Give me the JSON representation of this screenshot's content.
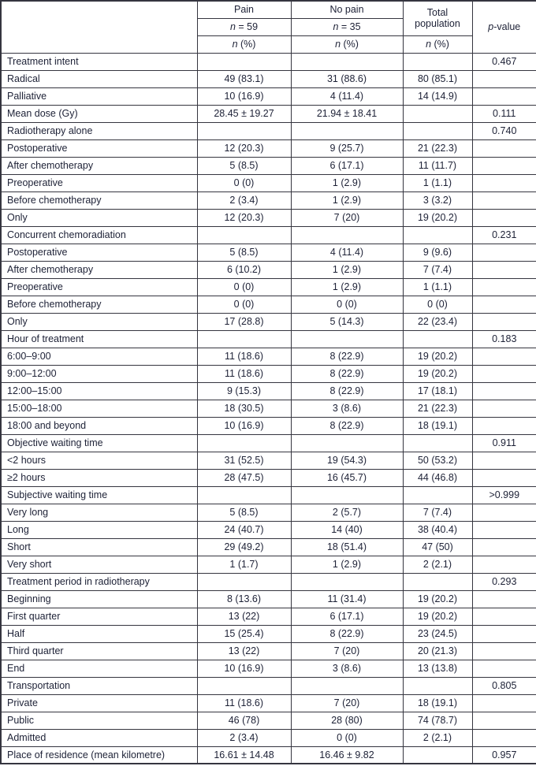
{
  "colors": {
    "text": "#1d2136",
    "border": "#35353f",
    "background": "#ffffff"
  },
  "table": {
    "header": {
      "corner": "",
      "pain": {
        "title": "Pain",
        "n": {
          "it": "n",
          "rest": " = 59"
        },
        "pct": {
          "it": "n",
          "rest": " (%)"
        }
      },
      "no_pain": {
        "title": "No pain",
        "n": {
          "it": "n",
          "rest": " = 35"
        },
        "pct": {
          "it": "n",
          "rest": " (%)"
        }
      },
      "total": {
        "title": "Total population",
        "pct": {
          "it": "n",
          "rest": " (%)"
        }
      },
      "p_value": {
        "it": "p",
        "rest": "-value"
      }
    },
    "rows": [
      {
        "label": "Treatment intent",
        "pain": "",
        "no_pain": "",
        "total": "",
        "p": "0.467"
      },
      {
        "label": "Radical",
        "pain": "49 (83.1)",
        "no_pain": "31 (88.6)",
        "total": "80 (85.1)",
        "p": ""
      },
      {
        "label": "Palliative",
        "pain": "10 (16.9)",
        "no_pain": "4 (11.4)",
        "total": "14 (14.9)",
        "p": ""
      },
      {
        "label": "Mean dose (Gy)",
        "pain": "28.45 ± 19.27",
        "no_pain": "21.94 ± 18.41",
        "total": "",
        "p": "0.111"
      },
      {
        "label": "Radiotherapy alone",
        "pain": "",
        "no_pain": "",
        "total": "",
        "p": "0.740"
      },
      {
        "label": "Postoperative",
        "pain": "12 (20.3)",
        "no_pain": "9 (25.7)",
        "total": "21 (22.3)",
        "p": ""
      },
      {
        "label": "After chemotherapy",
        "pain": "5 (8.5)",
        "no_pain": "6 (17.1)",
        "total": "11 (11.7)",
        "p": ""
      },
      {
        "label": "Preoperative",
        "pain": "0 (0)",
        "no_pain": "1 (2.9)",
        "total": "1 (1.1)",
        "p": ""
      },
      {
        "label": "Before chemotherapy",
        "pain": "2 (3.4)",
        "no_pain": "1 (2.9)",
        "total": "3 (3.2)",
        "p": ""
      },
      {
        "label": "Only",
        "pain": "12 (20.3)",
        "no_pain": "7 (20)",
        "total": "19 (20.2)",
        "p": ""
      },
      {
        "label": "Concurrent chemoradiation",
        "pain": "",
        "no_pain": "",
        "total": "",
        "p": "0.231"
      },
      {
        "label": "Postoperative",
        "pain": "5 (8.5)",
        "no_pain": "4 (11.4)",
        "total": "9 (9.6)",
        "p": ""
      },
      {
        "label": "After chemotherapy",
        "pain": "6 (10.2)",
        "no_pain": "1 (2.9)",
        "total": "7 (7.4)",
        "p": ""
      },
      {
        "label": "Preoperative",
        "pain": "0 (0)",
        "no_pain": "1 (2.9)",
        "total": "1 (1.1)",
        "p": ""
      },
      {
        "label": "Before chemotherapy",
        "pain": "0 (0)",
        "no_pain": "0 (0)",
        "total": "0 (0)",
        "p": ""
      },
      {
        "label": "Only",
        "pain": "17 (28.8)",
        "no_pain": "5 (14.3)",
        "total": "22 (23.4)",
        "p": ""
      },
      {
        "label": "Hour of treatment",
        "pain": "",
        "no_pain": "",
        "total": "",
        "p": "0.183"
      },
      {
        "label": "6:00–9:00",
        "pain": "11 (18.6)",
        "no_pain": "8 (22.9)",
        "total": "19 (20.2)",
        "p": ""
      },
      {
        "label": "9:00–12:00",
        "pain": "11 (18.6)",
        "no_pain": "8 (22.9)",
        "total": "19 (20.2)",
        "p": ""
      },
      {
        "label": "12:00–15:00",
        "pain": "9 (15.3)",
        "no_pain": "8 (22.9)",
        "total": "17 (18.1)",
        "p": ""
      },
      {
        "label": "15:00–18:00",
        "pain": "18 (30.5)",
        "no_pain": "3 (8.6)",
        "total": "21 (22.3)",
        "p": ""
      },
      {
        "label": "18:00 and beyond",
        "pain": "10 (16.9)",
        "no_pain": "8 (22.9)",
        "total": "18 (19.1)",
        "p": ""
      },
      {
        "label": "Objective waiting time",
        "pain": "",
        "no_pain": "",
        "total": "",
        "p": "0.911"
      },
      {
        "label": "<2 hours",
        "pain": "31 (52.5)",
        "no_pain": "19 (54.3)",
        "total": "50 (53.2)",
        "p": ""
      },
      {
        "label": "≥2 hours",
        "pain": "28 (47.5)",
        "no_pain": "16 (45.7)",
        "total": "44 (46.8)",
        "p": ""
      },
      {
        "label": "Subjective waiting time",
        "pain": "",
        "no_pain": "",
        "total": "",
        "p": ">0.999"
      },
      {
        "label": "Very long",
        "pain": "5 (8.5)",
        "no_pain": "2 (5.7)",
        "total": "7 (7.4)",
        "p": ""
      },
      {
        "label": "Long",
        "pain": "24 (40.7)",
        "no_pain": "14 (40)",
        "total": "38 (40.4)",
        "p": ""
      },
      {
        "label": "Short",
        "pain": "29 (49.2)",
        "no_pain": "18 (51.4)",
        "total": "47 (50)",
        "p": ""
      },
      {
        "label": "Very short",
        "pain": "1 (1.7)",
        "no_pain": "1 (2.9)",
        "total": "2 (2.1)",
        "p": ""
      },
      {
        "label": "Treatment period in radiotherapy",
        "pain": "",
        "no_pain": "",
        "total": "",
        "p": "0.293"
      },
      {
        "label": "Beginning",
        "pain": "8 (13.6)",
        "no_pain": "11 (31.4)",
        "total": "19 (20.2)",
        "p": ""
      },
      {
        "label": "First quarter",
        "pain": "13 (22)",
        "no_pain": "6 (17.1)",
        "total": "19 (20.2)",
        "p": ""
      },
      {
        "label": "Half",
        "pain": "15 (25.4)",
        "no_pain": "8 (22.9)",
        "total": "23 (24.5)",
        "p": ""
      },
      {
        "label": "Third quarter",
        "pain": "13 (22)",
        "no_pain": "7 (20)",
        "total": "20 (21.3)",
        "p": ""
      },
      {
        "label": "End",
        "pain": "10 (16.9)",
        "no_pain": "3 (8.6)",
        "total": "13 (13.8)",
        "p": ""
      },
      {
        "label": "Transportation",
        "pain": "",
        "no_pain": "",
        "total": "",
        "p": "0.805"
      },
      {
        "label": "Private",
        "pain": "11 (18.6)",
        "no_pain": "7 (20)",
        "total": "18 (19.1)",
        "p": ""
      },
      {
        "label": "Public",
        "pain": "46 (78)",
        "no_pain": "28 (80)",
        "total": "74 (78.7)",
        "p": ""
      },
      {
        "label": "Admitted",
        "pain": "2 (3.4)",
        "no_pain": "0 (0)",
        "total": "2 (2.1)",
        "p": ""
      },
      {
        "label": "Place of residence (mean kilometre)",
        "pain": "16.61 ± 14.48",
        "no_pain": "16.46 ± 9.82",
        "total": "",
        "p": "0.957"
      }
    ]
  }
}
